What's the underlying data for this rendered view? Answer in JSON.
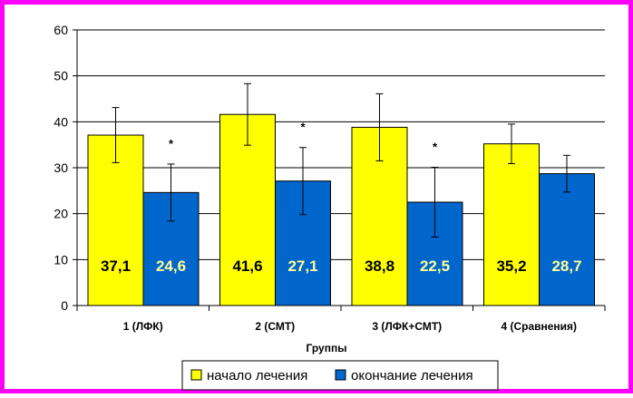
{
  "chart_data": {
    "type": "bar",
    "categories": [
      "1 (ЛФК)",
      "2 (СМТ)",
      "3 (ЛФК+СМТ)",
      "4 (Сравнения)"
    ],
    "series": [
      {
        "name": "начало лечения",
        "values": [
          37.1,
          41.6,
          38.8,
          35.2
        ],
        "value_labels": [
          "37,1",
          "41,6",
          "38,8",
          "35,2"
        ],
        "error": [
          6.0,
          6.7,
          7.3,
          4.3
        ],
        "color": "#ffff00",
        "label_color": "#000000"
      },
      {
        "name": "окончание лечения",
        "values": [
          24.6,
          27.1,
          22.5,
          28.7
        ],
        "value_labels": [
          "24,6",
          "27,1",
          "22,5",
          "28,7"
        ],
        "error": [
          6.2,
          7.3,
          7.6,
          4.0
        ],
        "color": "#0066cc",
        "label_color": "#ffff99"
      }
    ],
    "significance_marks": [
      "*",
      "*",
      "*",
      ""
    ],
    "xlabel": "Группы",
    "ylabel": "",
    "ylim": [
      0,
      60
    ],
    "yticks": [
      0,
      10,
      20,
      30,
      40,
      50,
      60
    ],
    "grid": true,
    "legend_position": "bottom"
  }
}
